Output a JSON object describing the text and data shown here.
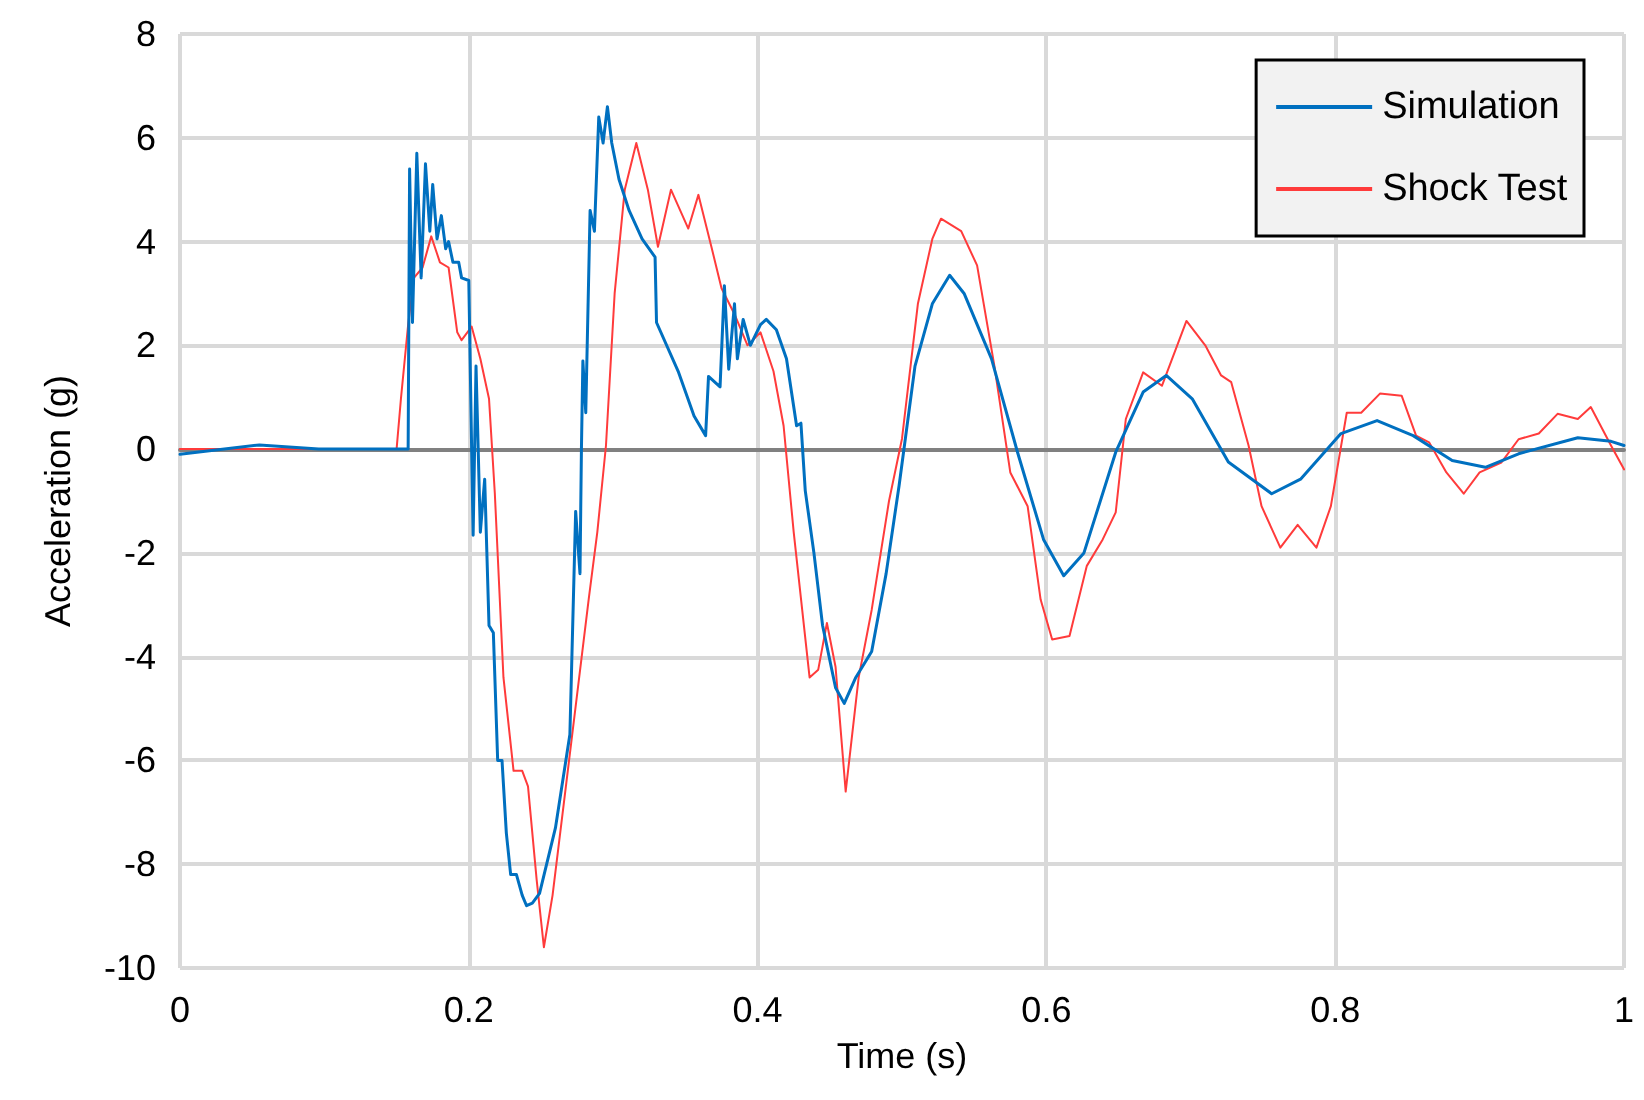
{
  "chart_data": {
    "type": "line",
    "xlabel": "Time (s)",
    "ylabel": "Acceleration (g)",
    "xlim": [
      0,
      1
    ],
    "xticks": [
      0,
      0.2,
      0.4,
      0.6,
      0.8,
      1
    ],
    "ylim": [
      -10,
      8
    ],
    "yticks": [
      -10,
      -8,
      -6,
      -4,
      -2,
      0,
      2,
      4,
      6,
      8
    ],
    "grid": true,
    "legend": "top right",
    "marker": "none",
    "line_style": "solid",
    "series": [
      {
        "name": "Simulation",
        "color": "#0070c0",
        "x": [
          0,
          0.055,
          0.096,
          0.156,
          0.158,
          0.159,
          0.161,
          0.164,
          0.167,
          0.17,
          0.173,
          0.175,
          0.178,
          0.181,
          0.184,
          0.186,
          0.189,
          0.193,
          0.195,
          0.2,
          0.202,
          0.203,
          0.205,
          0.208,
          0.211,
          0.214,
          0.217,
          0.22,
          0.223,
          0.226,
          0.229,
          0.233,
          0.237,
          0.24,
          0.244,
          0.249,
          0.26,
          0.27,
          0.274,
          0.277,
          0.278,
          0.279,
          0.281,
          0.284,
          0.287,
          0.29,
          0.293,
          0.296,
          0.299,
          0.304,
          0.311,
          0.32,
          0.329,
          0.33,
          0.345,
          0.356,
          0.364,
          0.366,
          0.374,
          0.377,
          0.38,
          0.384,
          0.386,
          0.39,
          0.395,
          0.402,
          0.406,
          0.413,
          0.42,
          0.427,
          0.43,
          0.433,
          0.439,
          0.445,
          0.454,
          0.46,
          0.468,
          0.479,
          0.489,
          0.498,
          0.509,
          0.521,
          0.533,
          0.543,
          0.562,
          0.58,
          0.598,
          0.612,
          0.626,
          0.648,
          0.667,
          0.683,
          0.701,
          0.726,
          0.756,
          0.776,
          0.804,
          0.829,
          0.854,
          0.881,
          0.904,
          0.927,
          0.968,
          0.991,
          1.0
        ],
        "values": [
          -0.1,
          0.08,
          0,
          0,
          0,
          5.4,
          2.44,
          5.7,
          3.3,
          5.5,
          4.2,
          5.1,
          4.05,
          4.5,
          3.86,
          4.0,
          3.6,
          3.6,
          3.3,
          3.25,
          -0.06,
          -1.66,
          1.6,
          -1.6,
          -0.58,
          -3.4,
          -3.54,
          -6.0,
          -6.0,
          -7.4,
          -8.2,
          -8.2,
          -8.6,
          -8.8,
          -8.75,
          -8.56,
          -7.3,
          -5.5,
          -1.2,
          -2.4,
          0,
          1.7,
          0.7,
          4.6,
          4.2,
          6.4,
          5.9,
          6.6,
          5.9,
          5.2,
          4.6,
          4.05,
          3.7,
          2.44,
          1.5,
          0.64,
          0.26,
          1.4,
          1.2,
          3.15,
          1.54,
          2.8,
          1.74,
          2.5,
          2.0,
          2.4,
          2.5,
          2.3,
          1.74,
          0.45,
          0.5,
          -0.8,
          -2.0,
          -3.4,
          -4.6,
          -4.9,
          -4.4,
          -3.9,
          -2.4,
          -0.7,
          1.6,
          2.8,
          3.35,
          3.0,
          1.74,
          -0.06,
          -1.74,
          -2.44,
          -2.0,
          -0.06,
          1.1,
          1.42,
          0.97,
          -0.25,
          -0.86,
          -0.58,
          0.3,
          0.55,
          0.26,
          -0.22,
          -0.35,
          -0.09,
          0.22,
          0.15,
          0.07
        ]
      },
      {
        "name": "Shock Test",
        "color": "#ff3b3b",
        "x": [
          0,
          0.15,
          0.153,
          0.158,
          0.162,
          0.168,
          0.174,
          0.18,
          0.186,
          0.192,
          0.195,
          0.202,
          0.208,
          0.214,
          0.218,
          0.224,
          0.231,
          0.237,
          0.241,
          0.247,
          0.252,
          0.258,
          0.269,
          0.283,
          0.289,
          0.295,
          0.301,
          0.308,
          0.316,
          0.324,
          0.331,
          0.34,
          0.352,
          0.359,
          0.368,
          0.375,
          0.384,
          0.393,
          0.402,
          0.411,
          0.418,
          0.425,
          0.436,
          0.442,
          0.448,
          0.454,
          0.461,
          0.47,
          0.479,
          0.491,
          0.5,
          0.511,
          0.521,
          0.527,
          0.541,
          0.552,
          0.564,
          0.575,
          0.587,
          0.596,
          0.604,
          0.616,
          0.628,
          0.639,
          0.648,
          0.655,
          0.667,
          0.68,
          0.697,
          0.71,
          0.721,
          0.728,
          0.74,
          0.749,
          0.762,
          0.774,
          0.787,
          0.797,
          0.808,
          0.818,
          0.831,
          0.846,
          0.856,
          0.865,
          0.877,
          0.889,
          0.9,
          0.915,
          0.927,
          0.941,
          0.954,
          0.968,
          0.977,
          0.991,
          1.0
        ],
        "values": [
          0,
          0,
          0.97,
          2.4,
          3.3,
          3.5,
          4.1,
          3.6,
          3.5,
          2.25,
          2.1,
          2.36,
          1.74,
          0.97,
          -0.84,
          -4.4,
          -6.2,
          -6.2,
          -6.5,
          -8.3,
          -9.6,
          -8.6,
          -6.1,
          -2.9,
          -1.6,
          0.07,
          3.0,
          5.0,
          5.9,
          5.0,
          3.9,
          5.0,
          4.25,
          4.9,
          3.9,
          3.1,
          2.6,
          2.0,
          2.25,
          1.5,
          0.45,
          -1.6,
          -4.4,
          -4.25,
          -3.35,
          -4.2,
          -6.6,
          -4.4,
          -3.1,
          -1.0,
          0.2,
          2.8,
          4.05,
          4.44,
          4.2,
          3.54,
          1.6,
          -0.45,
          -1.1,
          -2.9,
          -3.67,
          -3.6,
          -2.25,
          -1.74,
          -1.22,
          0.58,
          1.48,
          1.22,
          2.47,
          2.0,
          1.42,
          1.29,
          0.07,
          -1.1,
          -1.9,
          -1.46,
          -1.9,
          -1.1,
          0.7,
          0.7,
          1.07,
          1.03,
          0.26,
          0.13,
          -0.45,
          -0.86,
          -0.45,
          -0.26,
          0.19,
          0.3,
          0.68,
          0.58,
          0.81,
          0.07,
          -0.39
        ]
      }
    ]
  }
}
